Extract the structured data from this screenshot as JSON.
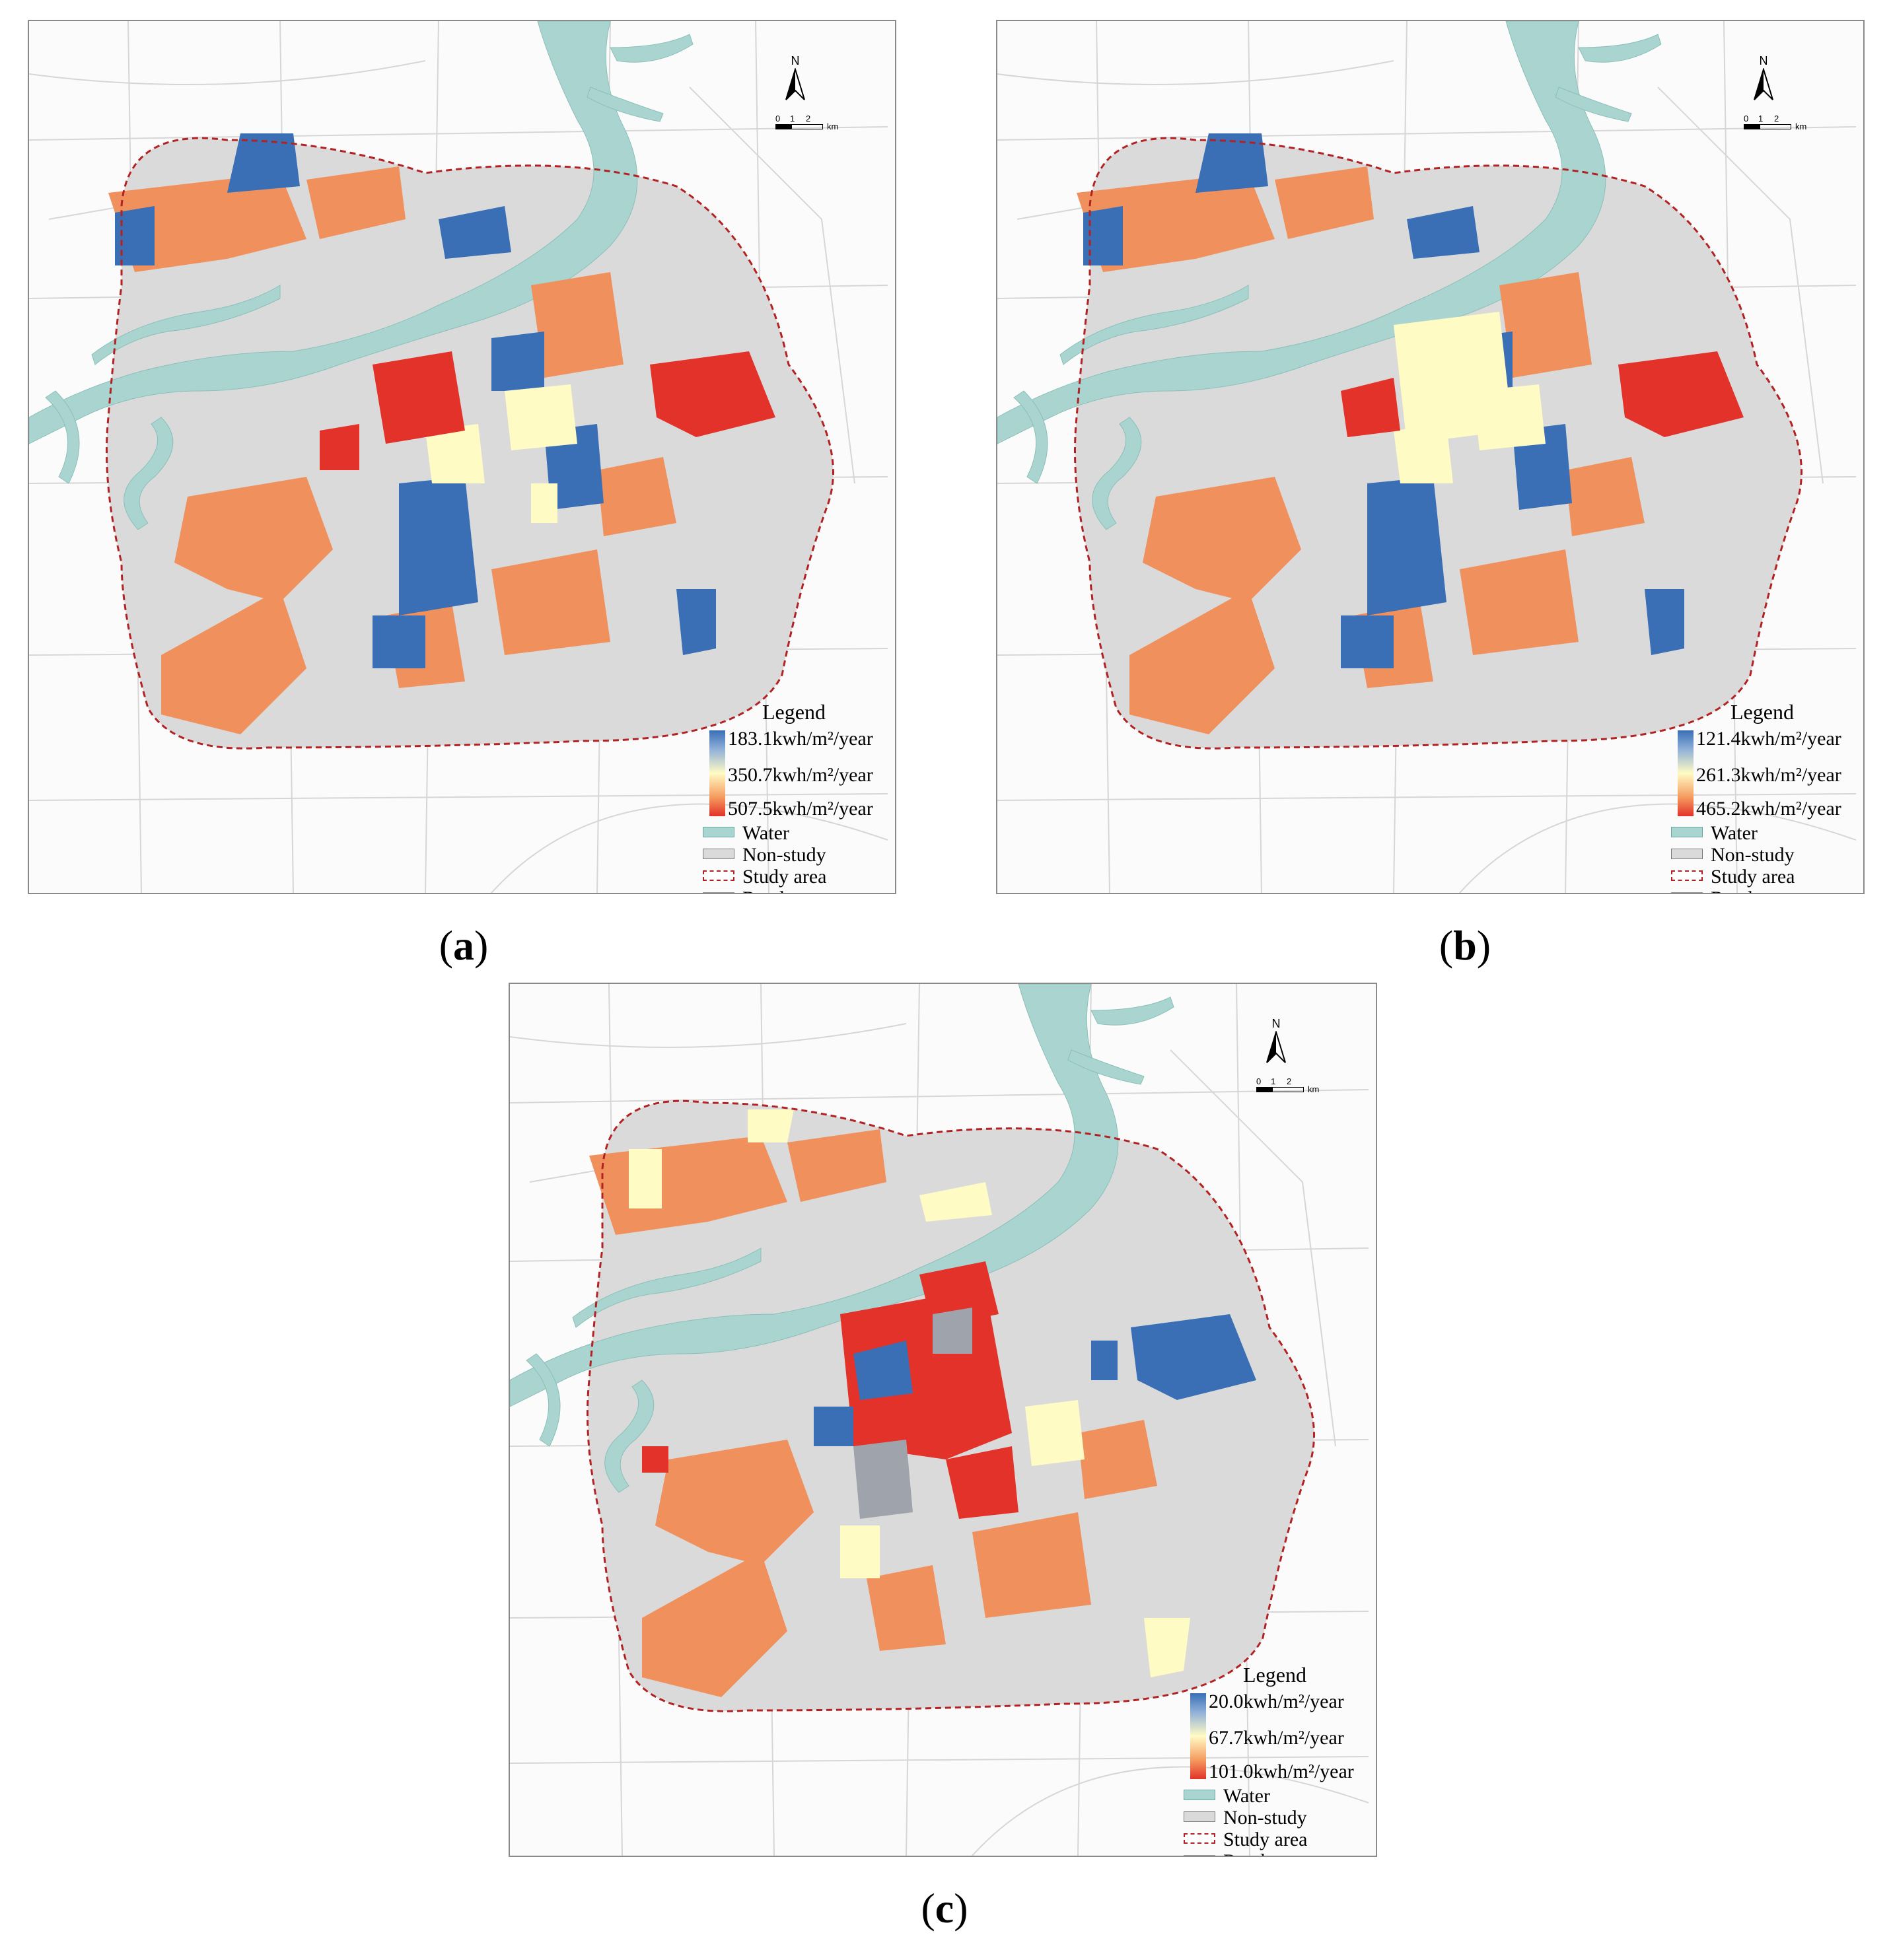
{
  "panels": [
    {
      "caption": "a",
      "legend": {
        "title": "Legend",
        "ramp": [
          "183.1kwh/m²/year",
          "350.7kwh/m²/year",
          "507.5kwh/m²/year"
        ],
        "items": [
          "Water",
          "Non-study",
          "Study area",
          "Road"
        ]
      },
      "north": "N",
      "scale": {
        "ticks": [
          "0",
          "1",
          "2"
        ],
        "unit": "km"
      }
    },
    {
      "caption": "b",
      "legend": {
        "title": "Legend",
        "ramp": [
          "121.4kwh/m²/year",
          "261.3kwh/m²/year",
          "465.2kwh/m²/year"
        ],
        "items": [
          "Water",
          "Non-study",
          "Study area",
          "Road"
        ]
      },
      "north": "N",
      "scale": {
        "ticks": [
          "0",
          "1",
          "2"
        ],
        "unit": "km"
      }
    },
    {
      "caption": "c",
      "legend": {
        "title": "Legend",
        "ramp": [
          "20.0kwh/m²/year",
          "67.7kwh/m²/year",
          "101.0kwh/m²/year"
        ],
        "items": [
          "Water",
          "Non-study",
          "Study area",
          "Road"
        ]
      },
      "north": "N",
      "scale": {
        "ticks": [
          "0",
          "1",
          "2"
        ],
        "unit": "km"
      }
    }
  ],
  "colors": {
    "low": "#3a6fb6",
    "mid": "#fffbc4",
    "high": "#e3322a",
    "midhigh": "#f0905c",
    "water": "#a9d4cf",
    "nonstudy": "#dadada",
    "study_boundary": "#b22222",
    "road": "#cfcfcf"
  }
}
